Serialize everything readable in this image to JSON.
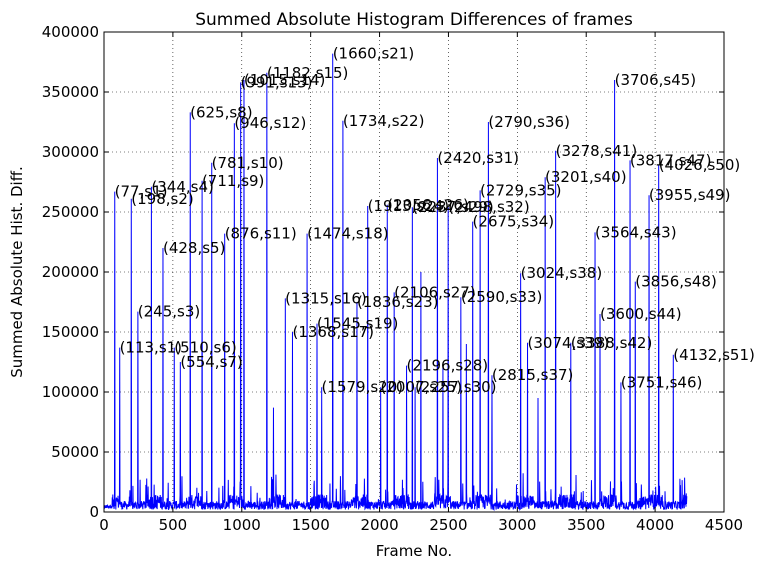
{
  "chart_data": {
    "type": "line",
    "title": "Summed Absolute Histogram Differences of frames",
    "xlabel": "Frame No.",
    "ylabel": "Summed Absolute Hist. Diff.",
    "xlim": [
      0,
      4500
    ],
    "ylim": [
      0,
      400000
    ],
    "xticks": [
      0,
      500,
      1000,
      1500,
      2000,
      2500,
      3000,
      3500,
      4000,
      4500
    ],
    "yticks": [
      0,
      50000,
      100000,
      150000,
      200000,
      250000,
      300000,
      350000,
      400000
    ],
    "grid": true,
    "series_color": "#0000ff",
    "x_end": 4230,
    "annotations": [
      {
        "label": "(77,s1)",
        "x": 77,
        "y": 267000
      },
      {
        "label": "(113,s1)",
        "x": 113,
        "y": 137000
      },
      {
        "label": "(198,s2)",
        "x": 198,
        "y": 261000
      },
      {
        "label": "(245,s3)",
        "x": 245,
        "y": 167000
      },
      {
        "label": "(344,s4)",
        "x": 344,
        "y": 271000
      },
      {
        "label": "(428,s5)",
        "x": 428,
        "y": 220000
      },
      {
        "label": "(510,s6)",
        "x": 510,
        "y": 137000
      },
      {
        "label": "(554,s7)",
        "x": 554,
        "y": 125000
      },
      {
        "label": "(625,s8)",
        "x": 625,
        "y": 333000
      },
      {
        "label": "(711,s9)",
        "x": 711,
        "y": 276000
      },
      {
        "label": "(781,s10)",
        "x": 781,
        "y": 291000
      },
      {
        "label": "(876,s11)",
        "x": 876,
        "y": 232000
      },
      {
        "label": "(946,s12)",
        "x": 946,
        "y": 324000
      },
      {
        "label": "(991,s13)",
        "x": 991,
        "y": 358000
      },
      {
        "label": "(1015,s14)",
        "x": 1015,
        "y": 360000
      },
      {
        "label": "(1182,s15)",
        "x": 1182,
        "y": 366000
      },
      {
        "label": "(1315,s16)",
        "x": 1315,
        "y": 178000
      },
      {
        "label": "(1368,s17)",
        "x": 1368,
        "y": 150000
      },
      {
        "label": "(1474,s18)",
        "x": 1474,
        "y": 232000
      },
      {
        "label": "(1545,s19)",
        "x": 1545,
        "y": 157000
      },
      {
        "label": "(1579,s20)",
        "x": 1579,
        "y": 104000
      },
      {
        "label": "(1660,s21)",
        "x": 1660,
        "y": 382000
      },
      {
        "label": "(1734,s22)",
        "x": 1734,
        "y": 326000
      },
      {
        "label": "(1836,s23)",
        "x": 1836,
        "y": 175000
      },
      {
        "label": "(1913,s24)",
        "x": 1913,
        "y": 255000
      },
      {
        "label": "(2007,s25)",
        "x": 2007,
        "y": 104000
      },
      {
        "label": "(2056,s26)",
        "x": 2056,
        "y": 256000
      },
      {
        "label": "(2106,s27)",
        "x": 2106,
        "y": 183000
      },
      {
        "label": "(2196,s28)",
        "x": 2196,
        "y": 122000
      },
      {
        "label": "(2237,s29)",
        "x": 2237,
        "y": 254000
      },
      {
        "label": "(2257,s30)",
        "x": 2257,
        "y": 104000
      },
      {
        "label": "(2420,s31)",
        "x": 2420,
        "y": 295000
      },
      {
        "label": "(2498,s32)",
        "x": 2498,
        "y": 254000
      },
      {
        "label": "(2590,s33)",
        "x": 2590,
        "y": 179000
      },
      {
        "label": "(2675,s34)",
        "x": 2675,
        "y": 242000
      },
      {
        "label": "(2729,s35)",
        "x": 2729,
        "y": 268000
      },
      {
        "label": "(2790,s36)",
        "x": 2790,
        "y": 325000
      },
      {
        "label": "(2815,s37)",
        "x": 2815,
        "y": 114000
      },
      {
        "label": "(3024,s38)",
        "x": 3024,
        "y": 199000
      },
      {
        "label": "(3074,s39)",
        "x": 3074,
        "y": 141000
      },
      {
        "label": "(3201,s40)",
        "x": 3201,
        "y": 279000
      },
      {
        "label": "(3278,s41)",
        "x": 3278,
        "y": 301000
      },
      {
        "label": "(3388,s42)",
        "x": 3388,
        "y": 141000
      },
      {
        "label": "(3564,s43)",
        "x": 3564,
        "y": 233000
      },
      {
        "label": "(3600,s44)",
        "x": 3600,
        "y": 165000
      },
      {
        "label": "(3706,s45)",
        "x": 3706,
        "y": 360000
      },
      {
        "label": "(3751,s46)",
        "x": 3751,
        "y": 108000
      },
      {
        "label": "(3817,s47)",
        "x": 3817,
        "y": 293000
      },
      {
        "label": "(3856,s48)",
        "x": 3856,
        "y": 192000
      },
      {
        "label": "(3955,s49)",
        "x": 3955,
        "y": 264000
      },
      {
        "label": "(4026,s50)",
        "x": 4026,
        "y": 289000
      },
      {
        "label": "(4132,s51)",
        "x": 4132,
        "y": 131000
      }
    ],
    "minor_peaks": [
      {
        "x": 1230,
        "y": 87000
      },
      {
        "x": 2300,
        "y": 200000
      },
      {
        "x": 2460,
        "y": 120000
      },
      {
        "x": 2630,
        "y": 140000
      },
      {
        "x": 3150,
        "y": 95000
      }
    ]
  }
}
